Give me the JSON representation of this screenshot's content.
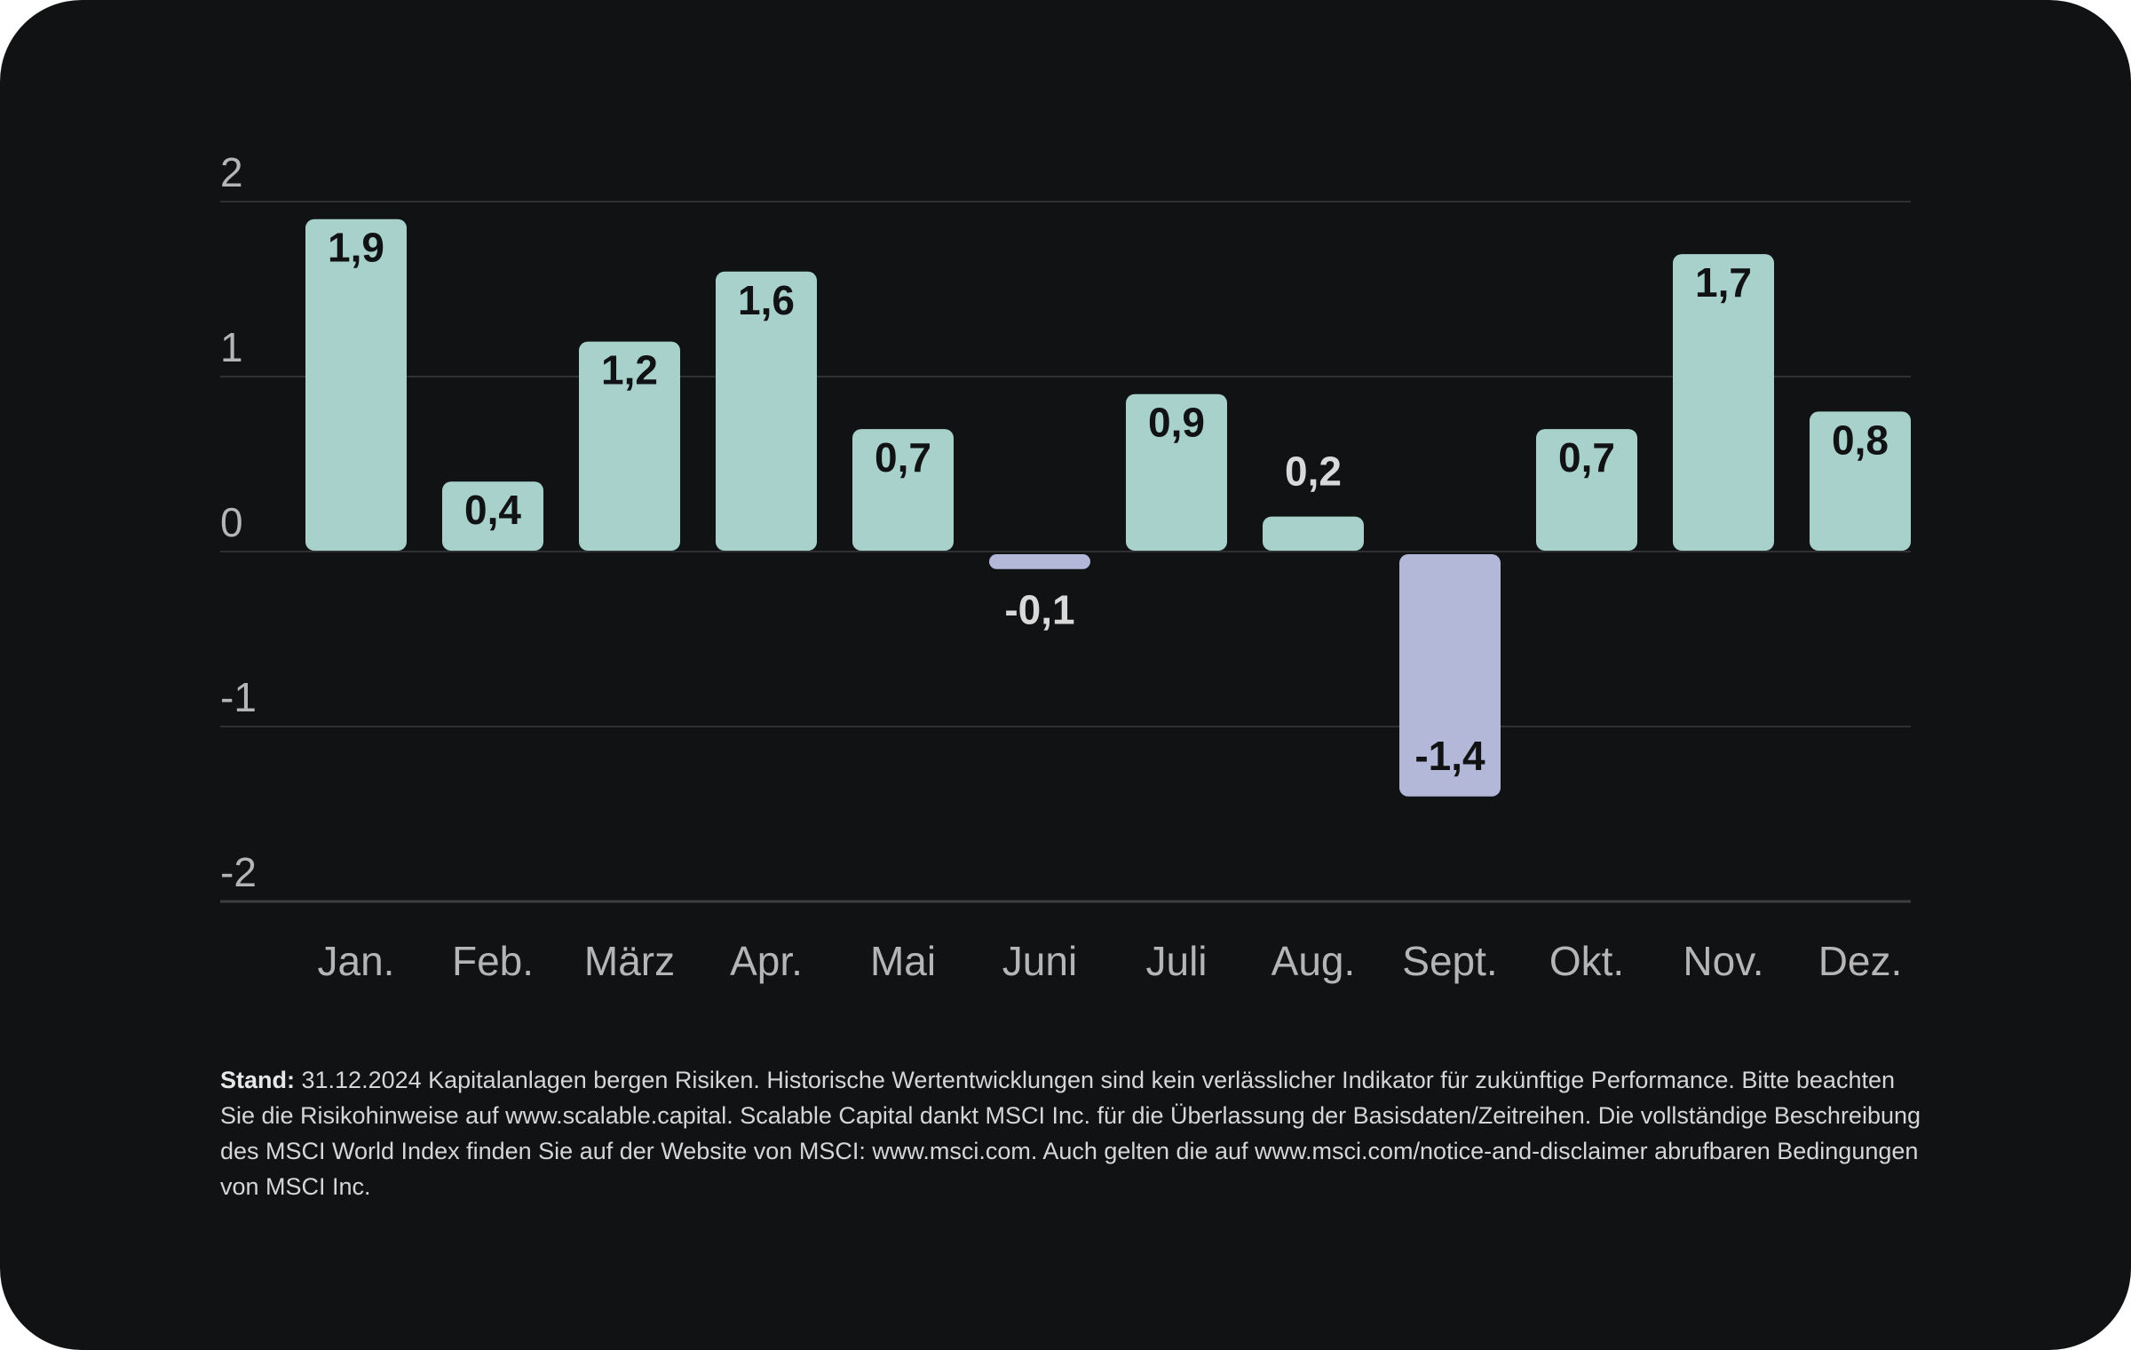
{
  "chart_data": {
    "type": "bar",
    "categories": [
      "Jan.",
      "Feb.",
      "März",
      "Apr.",
      "Mai",
      "Juni",
      "Juli",
      "Aug.",
      "Sept.",
      "Okt.",
      "Nov.",
      "Dez."
    ],
    "values": [
      1.9,
      0.4,
      1.2,
      1.6,
      0.7,
      -0.1,
      0.9,
      0.2,
      -1.4,
      0.7,
      1.7,
      0.8
    ],
    "value_labels": [
      "1,9",
      "0,4",
      "1,2",
      "1,6",
      "0,7",
      "-0,1",
      "0,9",
      "0,2",
      "-1,4",
      "0,7",
      "1,7",
      "0,8"
    ],
    "ylim": [
      -2,
      2
    ],
    "yticks": [
      2,
      1,
      0,
      -1,
      -2
    ],
    "ytick_labels": [
      "2",
      "1",
      "0",
      "-1",
      "-2"
    ],
    "grid": true,
    "colors": {
      "positive": "#a8d1cb",
      "negative": "#b3b8d8",
      "grid": "#2e3033",
      "baseline": "#3b3d40",
      "tick_text": "#b5b5b5",
      "label_inside": "#111214",
      "label_outside": "#d9d9d9"
    }
  },
  "footnote": {
    "bold": "Stand:",
    "text": " 31.12.2024 Kapitalanlagen bergen Risiken. Historische Wertentwicklungen sind kein verlässlicher Indikator für zukünftige Performance. Bitte beachten Sie die Risikohinweise auf www.scalable.capital. Scalable Capital dankt MSCI Inc. für die Überlassung der Basisdaten/Zeitreihen. Die vollständige Beschreibung des MSCI World Index finden Sie auf der Website von MSCI: www.msci.com. Auch gelten die auf www.msci.com/notice-and-disclaimer abrufbaren Bedingungen von MSCI Inc."
  }
}
